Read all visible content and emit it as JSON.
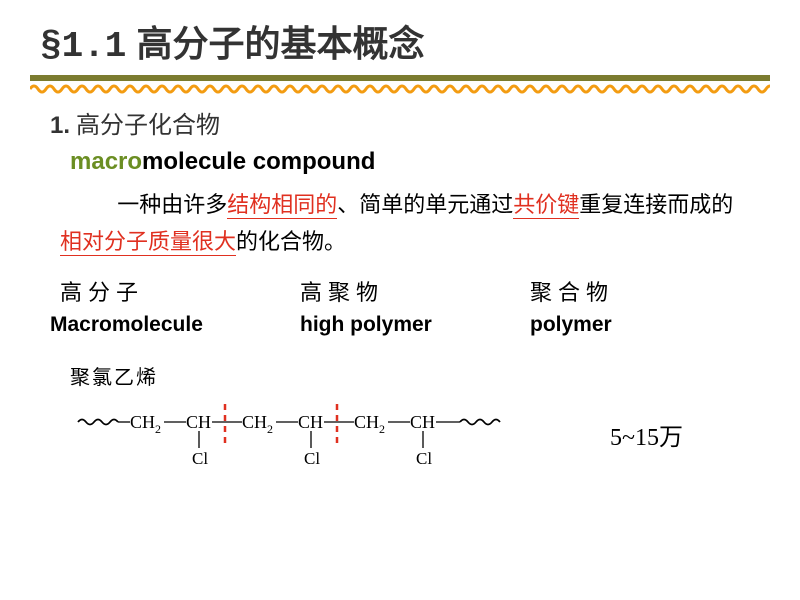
{
  "title": {
    "section": "§1.1",
    "text": "高分子的基本概念"
  },
  "heading": {
    "num": "1.",
    "text": "高分子化合物"
  },
  "term": {
    "prefix": "macro",
    "rest": "molecule  compound"
  },
  "definition": {
    "t1": "一种由许多",
    "r1": "结构相同的",
    "t2": "、简单的单元通过",
    "r2": "共价键",
    "t3": "重复连接而成的",
    "r3": "相对分子质量很大",
    "t4": "的化合物。"
  },
  "rows": {
    "zh": {
      "c1": "高分子",
      "c2": "高聚物",
      "c3": "聚合物"
    },
    "en": {
      "c1": "Macromolecule",
      "c2": "high polymer",
      "c3": "polymer"
    }
  },
  "pvc_label": "聚氯乙烯",
  "chain": {
    "units": [
      {
        "top": "CH",
        "sub1": "2",
        "link": true,
        "bottom": ""
      },
      {
        "top": "CH",
        "sub1": "",
        "link": true,
        "bottom": "Cl"
      },
      {
        "top": "CH",
        "sub1": "2",
        "link": true,
        "bottom": ""
      },
      {
        "top": "CH",
        "sub1": "",
        "link": true,
        "bottom": "Cl"
      },
      {
        "top": "CH",
        "sub1": "2",
        "link": true,
        "bottom": ""
      },
      {
        "top": "CH",
        "sub1": "",
        "link": false,
        "bottom": "Cl"
      }
    ]
  },
  "mw": "5~15万",
  "colors": {
    "olive": "#6b8e23",
    "orange_wave": "#f39c12",
    "red": "#e03020",
    "bar": "#7b7b2f"
  }
}
